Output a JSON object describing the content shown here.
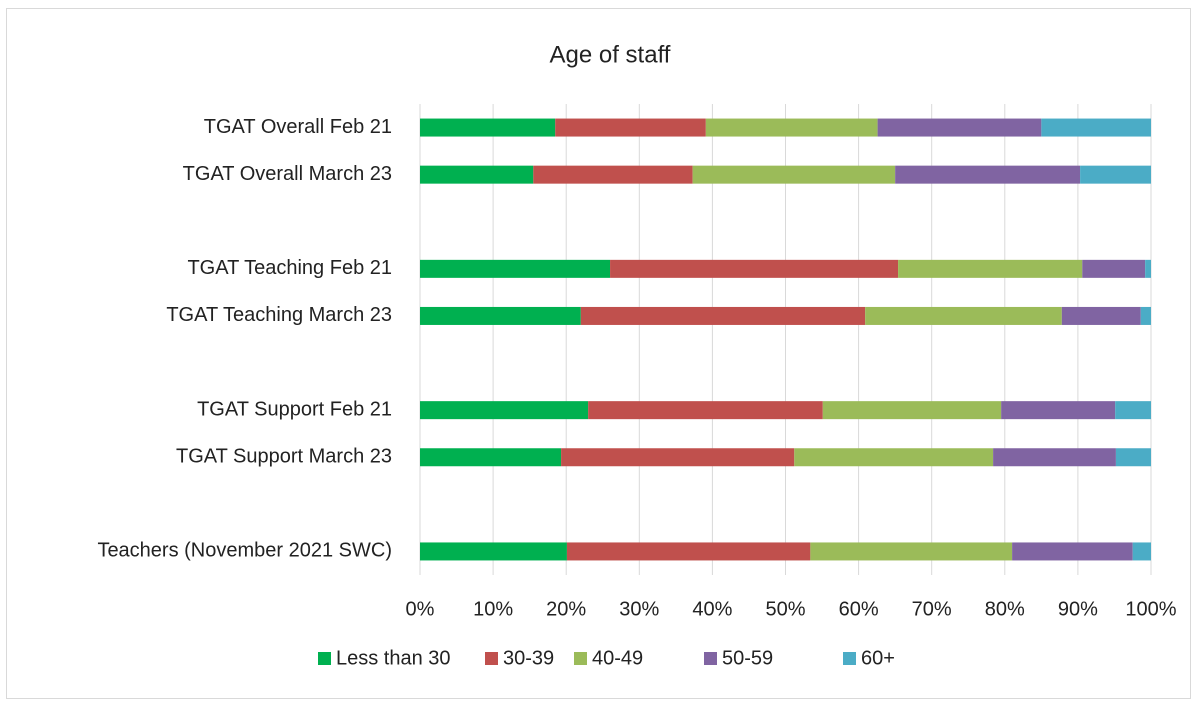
{
  "chart_data": {
    "type": "stacked-barh",
    "title": "Age of staff",
    "categories": [
      "TGAT Overall Feb 21",
      "TGAT Overall March 23",
      null,
      "TGAT Teaching Feb 21",
      "TGAT Teaching March 23",
      null,
      "TGAT Support Feb 21",
      "TGAT Support March 23",
      null,
      "Teachers (November 2021 SWC)"
    ],
    "series": [
      {
        "name": "Less than 30",
        "color": "#00b050",
        "values": [
          18.5,
          15.5,
          null,
          26.0,
          22.0,
          null,
          23.0,
          19.3,
          null,
          20.1
        ]
      },
      {
        "name": "30-39",
        "color": "#c0504d",
        "values": [
          20.6,
          21.8,
          null,
          39.4,
          38.9,
          null,
          32.1,
          31.9,
          null,
          33.3
        ]
      },
      {
        "name": "40-49",
        "color": "#9bbb59",
        "values": [
          23.5,
          27.7,
          null,
          25.2,
          26.9,
          null,
          24.4,
          27.2,
          null,
          27.6
        ]
      },
      {
        "name": "50-59",
        "color": "#8064a2",
        "values": [
          22.4,
          25.3,
          null,
          8.6,
          10.8,
          null,
          15.6,
          16.8,
          null,
          16.5
        ]
      },
      {
        "name": "60+",
        "color": "#4bacc6",
        "values": [
          15.0,
          9.7,
          null,
          0.8,
          1.4,
          null,
          4.9,
          4.8,
          null,
          2.5
        ]
      }
    ],
    "xlim": [
      0,
      100
    ],
    "xticks": [
      {
        "value": 0,
        "label": "0%"
      },
      {
        "value": 10,
        "label": "10%"
      },
      {
        "value": 20,
        "label": "20%"
      },
      {
        "value": 30,
        "label": "30%"
      },
      {
        "value": 40,
        "label": "40%"
      },
      {
        "value": 50,
        "label": "50%"
      },
      {
        "value": 60,
        "label": "60%"
      },
      {
        "value": 70,
        "label": "70%"
      },
      {
        "value": 80,
        "label": "80%"
      },
      {
        "value": 90,
        "label": "90%"
      },
      {
        "value": 100,
        "label": "100%"
      }
    ],
    "grid": true,
    "legend": "bottom"
  }
}
